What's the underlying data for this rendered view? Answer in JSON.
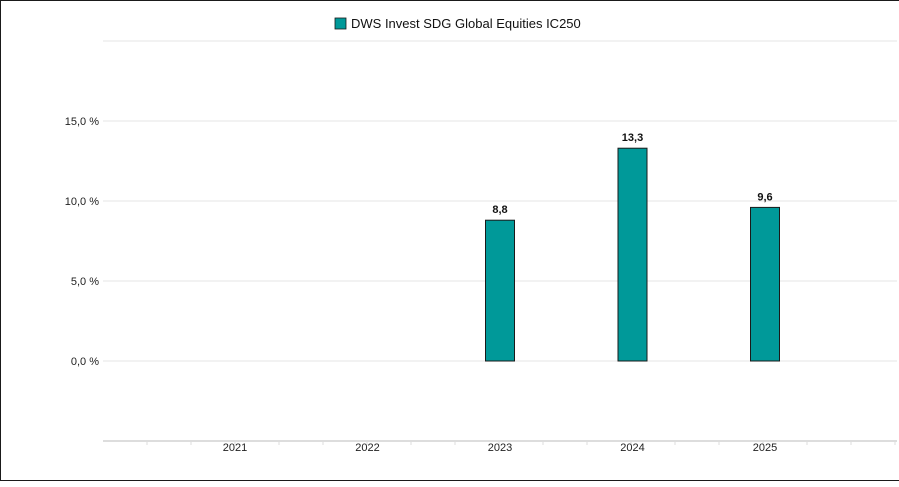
{
  "chart_data": {
    "type": "bar",
    "title": "",
    "xlabel": "",
    "ylabel": "",
    "categories": [
      "2021",
      "2022",
      "2023",
      "2024",
      "2025"
    ],
    "series": [
      {
        "name": "DWS Invest SDG Global Equities IC250",
        "values": [
          null,
          null,
          8.8,
          13.3,
          9.6
        ],
        "value_labels": [
          null,
          null,
          "8,8",
          "13,3",
          "9,6"
        ],
        "color": "#009999"
      }
    ],
    "ylim": [
      -5,
      20
    ],
    "yticks": [
      0,
      5,
      10,
      15
    ],
    "ytick_labels": [
      "0,0 %",
      "5,0 %",
      "10,0 %",
      "15,0 %"
    ],
    "grid": true,
    "legend_position": "top"
  },
  "colors": {
    "bar_fill": "#009999",
    "bar_stroke": "#1a1a1a",
    "gridline": "#e6e6e6",
    "axis": "#dddddd"
  }
}
